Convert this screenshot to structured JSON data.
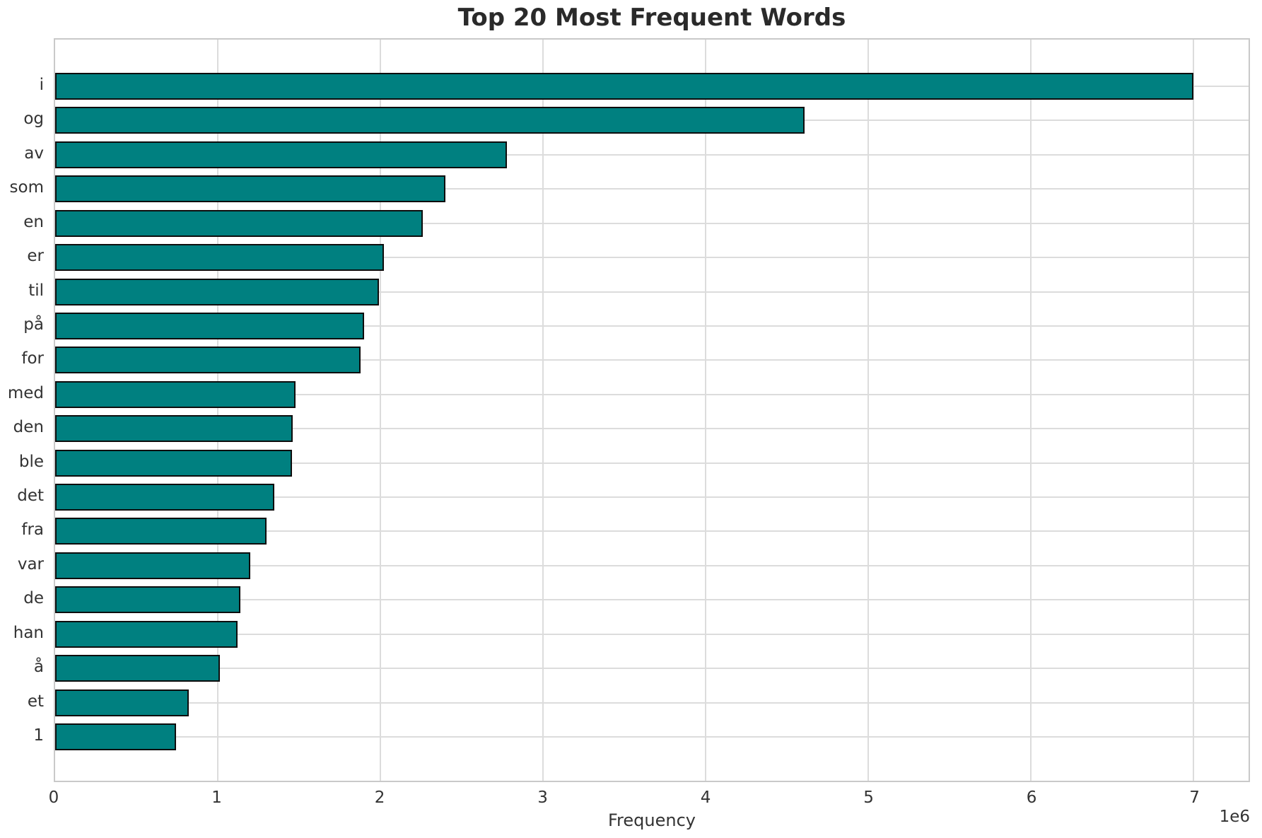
{
  "chart_data": {
    "type": "bar",
    "orientation": "horizontal",
    "title": "Top 20 Most Frequent Words",
    "xlabel": "Frequency",
    "ylabel": "",
    "offset_label": "1e6",
    "grid": true,
    "legend_position": "none",
    "bar_color": "#008080",
    "bar_edge_color": "#0d0d0d",
    "categories": [
      "i",
      "og",
      "av",
      "som",
      "en",
      "er",
      "til",
      "på",
      "for",
      "med",
      "den",
      "ble",
      "det",
      "fra",
      "var",
      "de",
      "han",
      "å",
      "et",
      "1"
    ],
    "values": [
      7000000,
      4610000,
      2780000,
      2400000,
      2260000,
      2020000,
      1990000,
      1900000,
      1880000,
      1480000,
      1460000,
      1455000,
      1350000,
      1300000,
      1200000,
      1140000,
      1120000,
      1015000,
      820000,
      745000
    ],
    "xlim": [
      0,
      7340000
    ],
    "xticks": [
      {
        "label": "0",
        "value": 0
      },
      {
        "label": "1",
        "value": 1000000
      },
      {
        "label": "2",
        "value": 2000000
      },
      {
        "label": "3",
        "value": 3000000
      },
      {
        "label": "4",
        "value": 4000000
      },
      {
        "label": "5",
        "value": 5000000
      },
      {
        "label": "6",
        "value": 6000000
      },
      {
        "label": "7",
        "value": 7000000
      }
    ]
  }
}
